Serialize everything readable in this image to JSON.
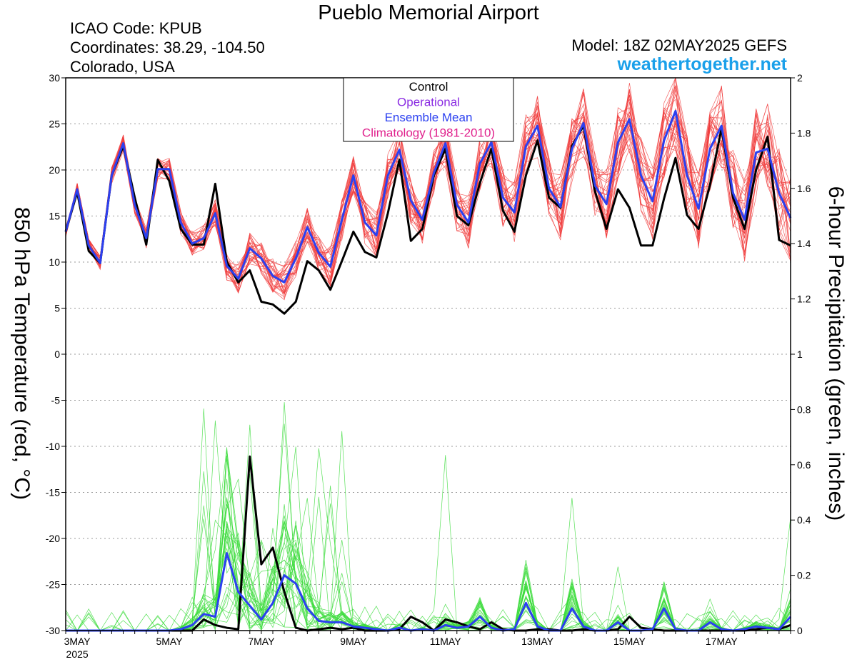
{
  "header": {
    "title": "Pueblo Memorial Airport",
    "icao": "ICAO Code: KPUB",
    "coordinates": "Coordinates: 38.29, -104.50",
    "location": "Colorado, USA",
    "model": "Model: 18Z 02MAY2025 GEFS",
    "site": "weathertogether.net"
  },
  "colors": {
    "temperature_members": "#f03c3c",
    "precip_members": "#3cdc3c",
    "control": "#000000",
    "operational": "#8a2be2",
    "ensemble_mean": "#2b40f0",
    "climatology": "#e0208c",
    "site_link": "#1aa0ea"
  },
  "chart_data": {
    "type": "line",
    "title": "Pueblo Memorial Airport",
    "ylabel_left": "850 hPa Temperature (red, °C)",
    "ylabel_right": "6-hour Precipitation (green, inches)",
    "x_tick_labels": [
      "3MAY",
      "5MAY",
      "7MAY",
      "9MAY",
      "11MAY",
      "13MAY",
      "15MAY",
      "17MAY"
    ],
    "x_year_label": "2025",
    "y_left": {
      "range": [
        -30,
        30
      ],
      "ticks": [
        30,
        25,
        20,
        15,
        10,
        5,
        0,
        -5,
        -10,
        -15,
        -20,
        -25,
        -30
      ]
    },
    "y_right": {
      "range": [
        0,
        2
      ],
      "ticks": [
        2,
        1.8,
        1.6,
        1.4,
        1.2,
        1,
        0.8,
        0.6,
        0.4,
        0.2,
        0
      ]
    },
    "x": {
      "start": "2025-05-02T18Z",
      "step_hours": 6,
      "count": 64
    },
    "grid": "horizontal dotted",
    "legend": {
      "position": "top-center",
      "items": [
        {
          "label": "Control",
          "color": "#000000"
        },
        {
          "label": "Operational",
          "color": "#8a2be2"
        },
        {
          "label": "Ensemble Mean",
          "color": "#2b40f0"
        },
        {
          "label": "Climatology (1981-2010)",
          "color": "#e0208c"
        }
      ]
    },
    "series": [
      {
        "name": "Control",
        "axis": "left",
        "kind": "temperature",
        "values": [
          13.3,
          17.6,
          11.2,
          9.9,
          19.4,
          22.6,
          17.0,
          11.9,
          21.1,
          18.8,
          13.6,
          11.9,
          11.9,
          18.5,
          10.0,
          7.8,
          9.1,
          5.7,
          5.4,
          4.4,
          5.7,
          10.1,
          9.1,
          7.0,
          10.1,
          13.3,
          11.1,
          10.5,
          15.3,
          21.1,
          12.3,
          13.6,
          19.4,
          22.3,
          15.0,
          14.0,
          18.6,
          22.3,
          15.6,
          13.3,
          19.4,
          23.2,
          17.0,
          15.9,
          22.6,
          24.8,
          17.7,
          13.6,
          17.9,
          15.9,
          11.8,
          11.8,
          16.9,
          21.3,
          15.1,
          13.6,
          18.4,
          24.5,
          17.0,
          13.6,
          20.0,
          23.6,
          12.4,
          11.8
        ]
      },
      {
        "name": "Ensemble Mean",
        "axis": "left",
        "kind": "temperature",
        "values": [
          13.3,
          17.9,
          11.8,
          9.9,
          19.4,
          22.9,
          16.2,
          12.6,
          20.1,
          20.1,
          14.3,
          12.0,
          12.6,
          15.3,
          9.6,
          8.2,
          11.5,
          10.4,
          8.5,
          7.8,
          10.4,
          13.8,
          11.0,
          9.5,
          14.6,
          19.4,
          14.3,
          12.9,
          19.4,
          22.2,
          16.7,
          14.6,
          19.7,
          22.9,
          16.2,
          14.3,
          20.7,
          23.0,
          17.0,
          15.4,
          22.6,
          24.8,
          18.0,
          16.0,
          22.3,
          25.1,
          18.3,
          16.3,
          23.0,
          25.5,
          19.4,
          16.6,
          23.2,
          26.4,
          19.4,
          15.8,
          22.3,
          24.8,
          17.5,
          14.6,
          21.9,
          22.3,
          17.5,
          14.8
        ]
      },
      {
        "name": "Control precipitation",
        "axis": "right",
        "kind": "precip",
        "values": [
          0,
          0,
          0,
          0,
          0,
          0,
          0,
          0,
          0,
          0,
          0,
          0,
          0.04,
          0.02,
          0.01,
          0.005,
          0.63,
          0.24,
          0.3,
          0.14,
          0.01,
          0,
          0.005,
          0.01,
          0.005,
          0.01,
          0,
          0,
          0,
          0.005,
          0.05,
          0.03,
          0,
          0.04,
          0.03,
          0.015,
          0.005,
          0.03,
          0.005,
          0,
          0,
          0.005,
          0.005,
          0,
          0,
          0.005,
          0,
          0,
          0.005,
          0.05,
          0.01,
          0.005,
          0,
          0,
          0,
          0,
          0,
          0,
          0,
          0,
          0.005,
          0.01,
          0.005,
          0.02
        ]
      },
      {
        "name": "Ensemble Mean precipitation",
        "axis": "right",
        "kind": "precip",
        "values": [
          0,
          0,
          0,
          0,
          0,
          0,
          0,
          0,
          0,
          0,
          0.005,
          0.02,
          0.06,
          0.05,
          0.28,
          0.14,
          0.09,
          0.04,
          0.1,
          0.2,
          0.17,
          0.08,
          0.035,
          0.03,
          0.03,
          0.015,
          0.01,
          0.005,
          0,
          0.01,
          0,
          0.005,
          0,
          0.02,
          0.01,
          0.015,
          0.05,
          0.01,
          0,
          0.005,
          0.1,
          0.015,
          0,
          0,
          0.08,
          0.015,
          0,
          0,
          0.03,
          0,
          0,
          0.005,
          0.08,
          0.005,
          0,
          0,
          0.03,
          0.005,
          0,
          0.005,
          0.015,
          0.01,
          0.005,
          0.05
        ]
      }
    ],
    "ensemble_member_count": 30
  }
}
